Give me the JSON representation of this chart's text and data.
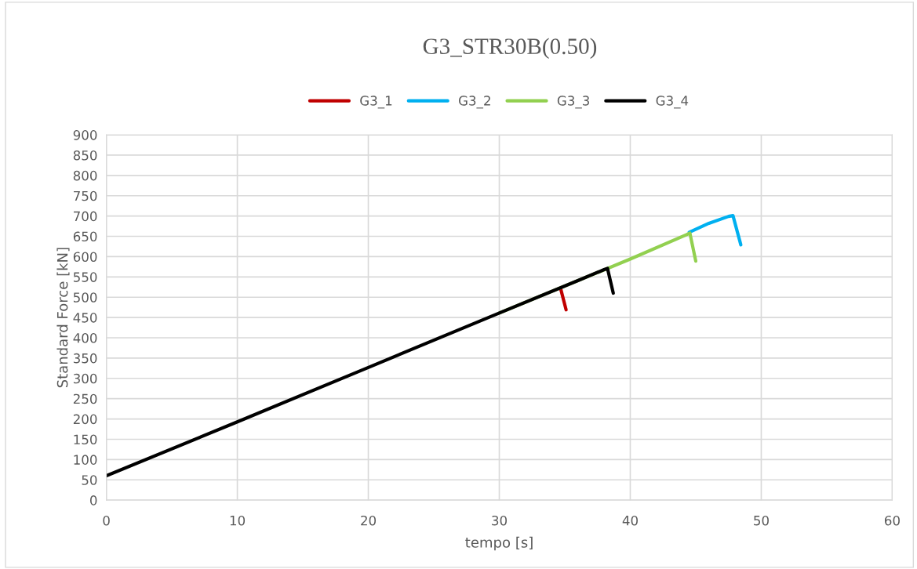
{
  "chart_data": {
    "type": "line",
    "title": "G3_STR30B(0.50)",
    "xlabel": "tempo [s]",
    "ylabel": "Standard Force [kN]",
    "xlim": [
      0,
      60
    ],
    "xticks": [
      0,
      10,
      20,
      30,
      40,
      50,
      60
    ],
    "ylim": [
      0,
      900
    ],
    "yticks": [
      0,
      50,
      100,
      150,
      200,
      250,
      300,
      350,
      400,
      450,
      500,
      550,
      600,
      650,
      700,
      750,
      800,
      850,
      900
    ],
    "grid": true,
    "legend": "top",
    "marker": "none",
    "line_style": "solid",
    "series": [
      {
        "name": "G3_1",
        "color": "#c00000",
        "x": [
          34.7,
          35.1
        ],
        "values": [
          519,
          469
        ]
      },
      {
        "name": "G3_2",
        "color": "#00b0f0",
        "x": [
          44.5,
          46,
          47.5,
          47.84,
          48.44
        ],
        "values": [
          660,
          682,
          699,
          701,
          629
        ]
      },
      {
        "name": "G3_3",
        "color": "#92d050",
        "x": [
          30,
          40,
          44.3,
          44.55,
          45.0
        ],
        "values": [
          461,
          594,
          654,
          658,
          589
        ]
      },
      {
        "name": "G3_4",
        "color": "#000000",
        "x": [
          0,
          10,
          20,
          30,
          36,
          38.0,
          38.26,
          38.7
        ],
        "values": [
          60,
          193,
          327,
          461,
          541,
          568,
          571,
          510
        ]
      }
    ]
  }
}
